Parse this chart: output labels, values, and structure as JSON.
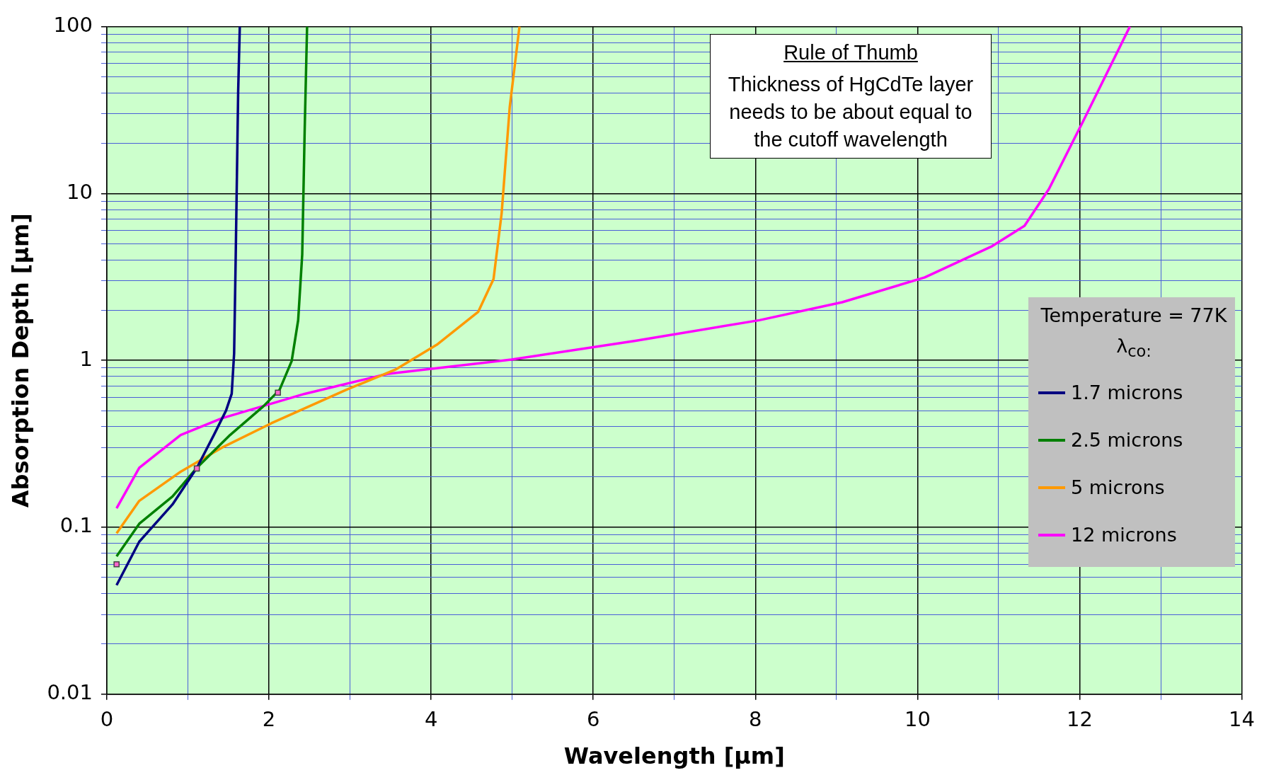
{
  "chart_data": {
    "type": "line",
    "xlabel": "Wavelength [µm]",
    "ylabel": "Absorption Depth [µm]",
    "legend_title": "Temperature = 77K\nλ$_{co:}$",
    "annotations": [
      "Rule of Thumb",
      "Thickness of HgCdTe layer needs to be about equal to the cutoff wavelength"
    ],
    "log": "y",
    "grid": true,
    "legend": "right",
    "marker": "none",
    "line_style": "solid",
    "xlim": [
      0,
      14
    ],
    "xticks": [
      0,
      {
        "value": 1,
        "label": null
      },
      2,
      {
        "value": 3,
        "label": null
      },
      4,
      {
        "value": 5,
        "label": null
      },
      6,
      {
        "value": 7,
        "label": null
      },
      8,
      {
        "value": 9,
        "label": null
      },
      10,
      {
        "value": 11,
        "label": null
      },
      12,
      {
        "value": 13,
        "label": null
      },
      14
    ],
    "ylim": [
      0.01,
      100
    ],
    "yticks": [
      0.01,
      {
        "value": 0.02,
        "label": null
      },
      {
        "value": 0.03,
        "label": null
      },
      {
        "value": 0.04,
        "label": null
      },
      {
        "value": 0.05,
        "label": null
      },
      {
        "value": 0.06,
        "label": null
      },
      {
        "value": 0.07,
        "label": null
      },
      {
        "value": 0.08,
        "label": null
      },
      {
        "value": 0.09,
        "label": null
      },
      0.1,
      {
        "value": 0.2,
        "label": null
      },
      {
        "value": 0.3,
        "label": null
      },
      {
        "value": 0.4,
        "label": null
      },
      {
        "value": 0.5,
        "label": null
      },
      {
        "value": 0.6,
        "label": null
      },
      {
        "value": 0.7,
        "label": null
      },
      {
        "value": 0.8,
        "label": null
      },
      {
        "value": 0.9,
        "label": null
      },
      1,
      {
        "value": 2,
        "label": null
      },
      {
        "value": 3,
        "label": null
      },
      {
        "value": 4,
        "label": null
      },
      {
        "value": 5,
        "label": null
      },
      {
        "value": 6,
        "label": null
      },
      {
        "value": 7,
        "label": null
      },
      {
        "value": 8,
        "label": null
      },
      {
        "value": 9,
        "label": null
      },
      10,
      {
        "value": 20,
        "label": null
      },
      {
        "value": 30,
        "label": null
      },
      {
        "value": 40,
        "label": null
      },
      {
        "value": 50,
        "label": null
      },
      {
        "value": 60,
        "label": null
      },
      {
        "value": 70,
        "label": null
      },
      {
        "value": 80,
        "label": null
      },
      {
        "value": 90,
        "label": null
      },
      100
    ],
    "series": [
      {
        "name": "1.7 microns",
        "color": "#000080",
        "x": [
          0.12,
          0.4,
          0.81,
          1.11,
          1.32,
          1.47,
          1.54,
          1.57,
          1.59,
          1.62,
          1.64
        ],
        "values": [
          0.045,
          0.082,
          0.137,
          0.227,
          0.357,
          0.5,
          0.63,
          1.1,
          4.3,
          41,
          100
        ]
      },
      {
        "name": "2.5 microns",
        "color": "#008000",
        "x": [
          0.12,
          0.4,
          0.81,
          1.11,
          1.52,
          1.93,
          2.13,
          2.28,
          2.36,
          2.41,
          2.44,
          2.47
        ],
        "values": [
          0.067,
          0.105,
          0.153,
          0.227,
          0.357,
          0.53,
          0.665,
          0.99,
          1.74,
          4.3,
          23.5,
          100
        ]
      },
      {
        "name": "5 microns",
        "color": "#ff9900",
        "x": [
          0.12,
          0.4,
          0.91,
          1.42,
          2.03,
          2.95,
          3.56,
          4.07,
          4.58,
          4.77,
          4.87,
          4.97,
          5.09
        ],
        "values": [
          0.092,
          0.144,
          0.215,
          0.3,
          0.42,
          0.665,
          0.88,
          1.24,
          1.95,
          3.07,
          7.6,
          33,
          100
        ]
      },
      {
        "name": "12 microns",
        "color": "#ff00ff",
        "x": [
          0.12,
          0.4,
          0.91,
          1.42,
          2.44,
          3.46,
          4.99,
          6.52,
          8.05,
          9.07,
          10.09,
          10.91,
          11.32,
          11.62,
          12.03,
          12.62
        ],
        "values": [
          0.13,
          0.227,
          0.357,
          0.45,
          0.63,
          0.83,
          1.01,
          1.31,
          1.74,
          2.23,
          3.14,
          4.8,
          6.4,
          10.6,
          26.3,
          100
        ]
      },
      {
        "type": "scatter",
        "marker": "square",
        "color": "#ff66cc",
        "x": [
          0.12,
          1.11,
          2.11
        ],
        "values": [
          0.06,
          0.225,
          0.64
        ]
      }
    ]
  }
}
